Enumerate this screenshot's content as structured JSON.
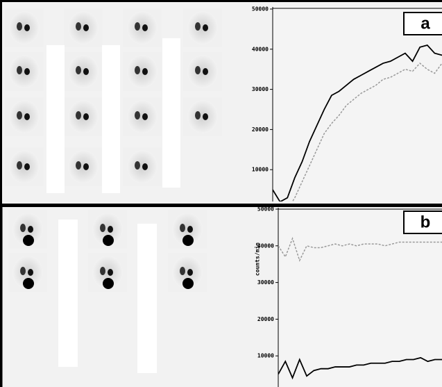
{
  "chart_data": [
    {
      "type": "line",
      "label": "a",
      "ylim": [
        0,
        50000
      ],
      "yticks": [
        10000,
        20000,
        30000,
        40000,
        50000
      ],
      "series": [
        {
          "color": "#000000",
          "dash": false,
          "values": [
            5000,
            2000,
            3000,
            8000,
            12000,
            17000,
            21000,
            25000,
            28500,
            29500,
            31000,
            32500,
            33500,
            34500,
            35500,
            36500,
            37000,
            38000,
            39000,
            37000,
            40500,
            41000,
            39000,
            38500
          ]
        },
        {
          "color": "#999999",
          "dash": true,
          "values": [
            null,
            null,
            0,
            3000,
            7000,
            11000,
            15000,
            19000,
            21500,
            23500,
            26000,
            27500,
            29000,
            30000,
            31000,
            32500,
            33000,
            34000,
            35000,
            34500,
            36500,
            35000,
            34000,
            36500
          ]
        }
      ]
    },
    {
      "type": "line",
      "label": "b",
      "ylabel": "counts/min",
      "ylim": [
        0,
        50000
      ],
      "yticks": [
        10000,
        20000,
        30000,
        40000,
        50000
      ],
      "series": [
        {
          "color": "#000000",
          "dash": false,
          "values": [
            5000,
            8500,
            4000,
            9000,
            4500,
            6000,
            6500,
            6500,
            7000,
            7000,
            7000,
            7500,
            7500,
            8000,
            8000,
            8000,
            8500,
            8500,
            9000,
            9000,
            9500,
            8500,
            9000,
            9000
          ]
        },
        {
          "color": "#999999",
          "dash": true,
          "values": [
            40000,
            37000,
            42000,
            36000,
            40000,
            39500,
            39500,
            40000,
            40500,
            40000,
            40500,
            40000,
            40500,
            40500,
            40500,
            40000,
            40500,
            41000,
            41000,
            41000,
            41000,
            41000,
            41000,
            41000
          ]
        }
      ]
    }
  ]
}
